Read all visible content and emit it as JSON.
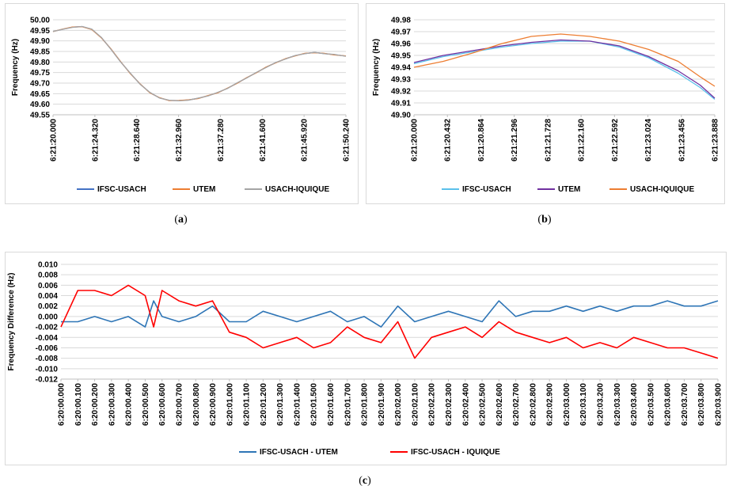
{
  "captions": {
    "a": {
      "open": "(",
      "letter": "a",
      "close": ")"
    },
    "b": {
      "open": "(",
      "letter": "b",
      "close": ")"
    },
    "c": {
      "open": "(",
      "letter": "c",
      "close": ")"
    }
  },
  "chart_data": [
    {
      "id": "a",
      "type": "line",
      "ylabel": "Frequency (Hz)",
      "ylim": [
        49.55,
        50.0
      ],
      "yticks": [
        "50.00",
        "49.95",
        "49.90",
        "49.85",
        "49.80",
        "49.75",
        "49.70",
        "49.65",
        "49.60",
        "49.55"
      ],
      "xlim": [
        0,
        30.24
      ],
      "xticks": [
        "6:21:20.000",
        "6:21:24.320",
        "6:21:28.640",
        "6:21:32.960",
        "6:21:37.280",
        "6:21:41.600",
        "6:21:45.920",
        "6:21:50.240"
      ],
      "grid": true,
      "legend_position": "bottom",
      "series": [
        {
          "name": "IFSC-USACH",
          "color": "#4472c4",
          "x": [
            0,
            1,
            2,
            3,
            4,
            5,
            6,
            7,
            8,
            9,
            10,
            11,
            12,
            13,
            14,
            15,
            16,
            17,
            18,
            19,
            20,
            21,
            22,
            23,
            24,
            25,
            26,
            27,
            28,
            29,
            30.24
          ],
          "y": [
            49.945,
            49.955,
            49.965,
            49.968,
            49.955,
            49.915,
            49.86,
            49.8,
            49.745,
            49.695,
            49.655,
            49.63,
            49.618,
            49.617,
            49.62,
            49.628,
            49.64,
            49.655,
            49.675,
            49.7,
            49.725,
            49.75,
            49.775,
            49.797,
            49.815,
            49.83,
            49.84,
            49.845,
            49.84,
            49.835,
            49.828
          ]
        },
        {
          "name": "UTEM",
          "color": "#ed7d31",
          "x": [
            0,
            1,
            2,
            3,
            4,
            5,
            6,
            7,
            8,
            9,
            10,
            11,
            12,
            13,
            14,
            15,
            16,
            17,
            18,
            19,
            20,
            21,
            22,
            23,
            24,
            25,
            26,
            27,
            28,
            29,
            30.24
          ],
          "y": [
            49.944,
            49.956,
            49.966,
            49.967,
            49.954,
            49.914,
            49.861,
            49.801,
            49.744,
            49.696,
            49.654,
            49.631,
            49.617,
            49.618,
            49.621,
            49.627,
            49.641,
            49.654,
            49.676,
            49.699,
            49.726,
            49.749,
            49.776,
            49.796,
            49.816,
            49.829,
            49.841,
            49.844,
            49.841,
            49.834,
            49.829
          ]
        },
        {
          "name": "USACH-IQUIQUE",
          "color": "#a5a5a5",
          "x": [
            0,
            1,
            2,
            3,
            4,
            5,
            6,
            7,
            8,
            9,
            10,
            11,
            12,
            13,
            14,
            15,
            16,
            17,
            18,
            19,
            20,
            21,
            22,
            23,
            24,
            25,
            26,
            27,
            28,
            29,
            30.24
          ],
          "y": [
            49.945,
            49.955,
            49.964,
            49.968,
            49.956,
            49.916,
            49.859,
            49.799,
            49.746,
            49.694,
            49.656,
            49.629,
            49.619,
            49.616,
            49.619,
            49.629,
            49.639,
            49.656,
            49.674,
            49.701,
            49.724,
            49.751,
            49.774,
            49.798,
            49.814,
            49.831,
            49.839,
            49.846,
            49.839,
            49.836,
            49.827
          ]
        }
      ]
    },
    {
      "id": "b",
      "type": "line",
      "ylabel": "Frequency (Hz)",
      "ylim": [
        49.9,
        49.98
      ],
      "yticks": [
        "49.98",
        "49.97",
        "49.96",
        "49.95",
        "49.94",
        "49.93",
        "49.92",
        "49.91",
        "49.90"
      ],
      "xlim": [
        0,
        4.1
      ],
      "xticks": [
        "6:21:20.000",
        "6:21:20.432",
        "6:21:20.864",
        "6:21:21.296",
        "6:21:21.728",
        "6:21:22.160",
        "6:21:22.592",
        "6:21:23.024",
        "6:21:23.456",
        "6:21:23.888"
      ],
      "grid": true,
      "legend_position": "bottom",
      "series": [
        {
          "name": "IFSC-USACH",
          "color": "#5bc0eb",
          "x": [
            0,
            0.4,
            0.8,
            1.2,
            1.6,
            2.0,
            2.4,
            2.8,
            3.2,
            3.6,
            3.9,
            4.1
          ],
          "y": [
            49.943,
            49.949,
            49.953,
            49.957,
            49.96,
            49.962,
            49.962,
            49.957,
            49.948,
            49.935,
            49.923,
            49.913
          ]
        },
        {
          "name": "UTEM",
          "color": "#7030a0",
          "x": [
            0,
            0.4,
            0.8,
            1.2,
            1.6,
            2.0,
            2.4,
            2.8,
            3.2,
            3.6,
            3.9,
            4.1
          ],
          "y": [
            49.944,
            49.95,
            49.954,
            49.958,
            49.961,
            49.963,
            49.962,
            49.958,
            49.949,
            49.937,
            49.925,
            49.914
          ]
        },
        {
          "name": "USACH-IQUIQUE",
          "color": "#ed7d31",
          "x": [
            0,
            0.4,
            0.8,
            1.2,
            1.6,
            2.0,
            2.4,
            2.8,
            3.2,
            3.6,
            3.9,
            4.1
          ],
          "y": [
            49.94,
            49.945,
            49.952,
            49.96,
            49.966,
            49.968,
            49.966,
            49.962,
            49.955,
            49.945,
            49.932,
            49.924
          ]
        }
      ]
    },
    {
      "id": "c",
      "type": "line",
      "ylabel": "Frequency Difference (Hz)",
      "ylim": [
        -0.012,
        0.01
      ],
      "yticks": [
        "0.010",
        "0.008",
        "0.006",
        "0.004",
        "0.002",
        "0.000",
        "-0.002",
        "-0.004",
        "-0.006",
        "-0.008",
        "-0.010",
        "-0.012"
      ],
      "xlim": [
        0,
        3.9
      ],
      "xticks": [
        "6:20:00.000",
        "6:20:00.100",
        "6:20:00.200",
        "6:20:00.300",
        "6:20:00.400",
        "6:20:00.500",
        "6:20:00.600",
        "6:20:00.700",
        "6:20:00.800",
        "6:20:00.900",
        "6:20:01.000",
        "6:20:01.100",
        "6:20:01.200",
        "6:20:01.300",
        "6:20:01.400",
        "6:20:01.500",
        "6:20:01.600",
        "6:20:01.700",
        "6:20:01.800",
        "6:20:01.900",
        "6:20:02.000",
        "6:20:02.100",
        "6:20:02.200",
        "6:20:02.300",
        "6:20:02.400",
        "6:20:02.500",
        "6:20:02.600",
        "6:20:02.700",
        "6:20:02.800",
        "6:20:02.900",
        "6:20:03.000",
        "6:20:03.100",
        "6:20:03.200",
        "6:20:03.300",
        "6:20:03.400",
        "6:20:03.500",
        "6:20:03.600",
        "6:20:03.700",
        "6:20:03.800",
        "6:20:03.900"
      ],
      "grid": true,
      "legend_position": "bottom",
      "series": [
        {
          "name": "IFSC-USACH - UTEM",
          "color": "#2e75b6",
          "x": [
            0,
            0.1,
            0.2,
            0.3,
            0.4,
            0.5,
            0.55,
            0.6,
            0.7,
            0.8,
            0.9,
            1.0,
            1.1,
            1.2,
            1.3,
            1.4,
            1.5,
            1.6,
            1.7,
            1.8,
            1.9,
            2.0,
            2.1,
            2.2,
            2.3,
            2.4,
            2.5,
            2.6,
            2.7,
            2.8,
            2.9,
            3.0,
            3.1,
            3.2,
            3.3,
            3.4,
            3.5,
            3.6,
            3.7,
            3.8,
            3.9
          ],
          "y": [
            -0.001,
            -0.001,
            0.0,
            -0.001,
            0.0,
            -0.002,
            0.003,
            0.0,
            -0.001,
            0.0,
            0.002,
            -0.001,
            -0.001,
            0.001,
            0.0,
            -0.001,
            0.0,
            0.001,
            -0.001,
            0.0,
            -0.002,
            0.002,
            -0.001,
            0.0,
            0.001,
            0.0,
            -0.001,
            0.003,
            0.0,
            0.001,
            0.001,
            0.002,
            0.001,
            0.002,
            0.001,
            0.002,
            0.002,
            0.003,
            0.002,
            0.002,
            0.003
          ]
        },
        {
          "name": "IFSC-USACH - IQUIQUE",
          "color": "#ff0000",
          "x": [
            0,
            0.1,
            0.2,
            0.3,
            0.4,
            0.5,
            0.55,
            0.6,
            0.7,
            0.8,
            0.9,
            1.0,
            1.1,
            1.2,
            1.3,
            1.4,
            1.5,
            1.6,
            1.7,
            1.8,
            1.9,
            2.0,
            2.1,
            2.2,
            2.3,
            2.4,
            2.5,
            2.6,
            2.7,
            2.8,
            2.9,
            3.0,
            3.1,
            3.2,
            3.3,
            3.4,
            3.5,
            3.6,
            3.7,
            3.8,
            3.9
          ],
          "y": [
            -0.002,
            0.005,
            0.005,
            0.004,
            0.006,
            0.004,
            -0.002,
            0.005,
            0.003,
            0.002,
            0.003,
            -0.003,
            -0.004,
            -0.006,
            -0.005,
            -0.004,
            -0.006,
            -0.005,
            -0.002,
            -0.004,
            -0.005,
            -0.001,
            -0.008,
            -0.004,
            -0.003,
            -0.002,
            -0.004,
            -0.001,
            -0.003,
            -0.004,
            -0.005,
            -0.004,
            -0.006,
            -0.005,
            -0.006,
            -0.004,
            -0.005,
            -0.006,
            -0.006,
            -0.007,
            -0.008
          ]
        }
      ]
    }
  ]
}
